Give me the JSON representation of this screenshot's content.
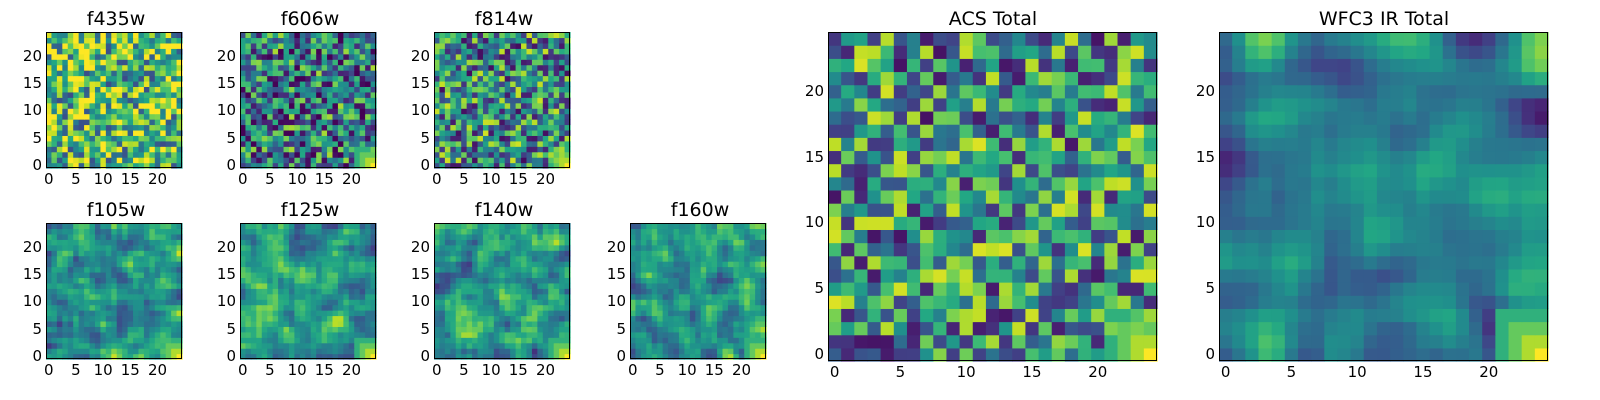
{
  "chart_data": [
    {
      "type": "heatmap",
      "title": "f435w",
      "size": 25,
      "xticks": [
        "0",
        "5",
        "10",
        "15",
        "20"
      ],
      "yticks": [
        "0",
        "5",
        "10",
        "15",
        "20"
      ],
      "colormap": "viridis",
      "seed": 11,
      "smooth": 0,
      "corner_bright": false,
      "bias": 0.68
    },
    {
      "type": "heatmap",
      "title": "f606w",
      "size": 25,
      "xticks": [
        "0",
        "5",
        "10",
        "15",
        "20"
      ],
      "yticks": [
        "0",
        "5",
        "10",
        "15",
        "20"
      ],
      "colormap": "viridis",
      "seed": 23,
      "smooth": 0,
      "corner_bright": true,
      "bias": 0.42
    },
    {
      "type": "heatmap",
      "title": "f814w",
      "size": 25,
      "xticks": [
        "0",
        "5",
        "10",
        "15",
        "20"
      ],
      "yticks": [
        "0",
        "5",
        "10",
        "15",
        "20"
      ],
      "colormap": "viridis",
      "seed": 37,
      "smooth": 0,
      "corner_bright": true,
      "bias": 0.48
    },
    {
      "type": "heatmap",
      "title": "f105w",
      "size": 25,
      "xticks": [
        "0",
        "5",
        "10",
        "15",
        "20"
      ],
      "yticks": [
        "0",
        "5",
        "10",
        "15",
        "20"
      ],
      "colormap": "viridis",
      "seed": 41,
      "smooth": 1,
      "corner_bright": true,
      "bias": 0.55
    },
    {
      "type": "heatmap",
      "title": "f125w",
      "size": 25,
      "xticks": [
        "0",
        "5",
        "10",
        "15",
        "20"
      ],
      "yticks": [
        "0",
        "5",
        "10",
        "15",
        "20"
      ],
      "colormap": "viridis",
      "seed": 53,
      "smooth": 1,
      "corner_bright": true,
      "bias": 0.52
    },
    {
      "type": "heatmap",
      "title": "f140w",
      "size": 25,
      "xticks": [
        "0",
        "5",
        "10",
        "15",
        "20"
      ],
      "yticks": [
        "0",
        "5",
        "10",
        "15",
        "20"
      ],
      "colormap": "viridis",
      "seed": 67,
      "smooth": 1,
      "corner_bright": true,
      "bias": 0.52
    },
    {
      "type": "heatmap",
      "title": "f160w",
      "size": 25,
      "xticks": [
        "0",
        "5",
        "10",
        "15",
        "20"
      ],
      "yticks": [
        "0",
        "5",
        "10",
        "15",
        "20"
      ],
      "colormap": "viridis",
      "seed": 79,
      "smooth": 1,
      "corner_bright": true,
      "bias": 0.5
    },
    {
      "type": "heatmap",
      "title": "ACS Total",
      "size": 25,
      "xticks": [
        "0",
        "5",
        "10",
        "15",
        "20"
      ],
      "yticks": [
        "0",
        "5",
        "10",
        "15",
        "20"
      ],
      "colormap": "viridis",
      "seed": 97,
      "smooth": 0,
      "corner_bright": true,
      "bias": 0.5
    },
    {
      "type": "heatmap",
      "title": "WFC3 IR Total",
      "size": 25,
      "xticks": [
        "0",
        "5",
        "10",
        "15",
        "20"
      ],
      "yticks": [
        "0",
        "5",
        "10",
        "15",
        "20"
      ],
      "colormap": "viridis",
      "seed": 113,
      "smooth": 2,
      "corner_bright": true,
      "bias": 0.45
    }
  ]
}
